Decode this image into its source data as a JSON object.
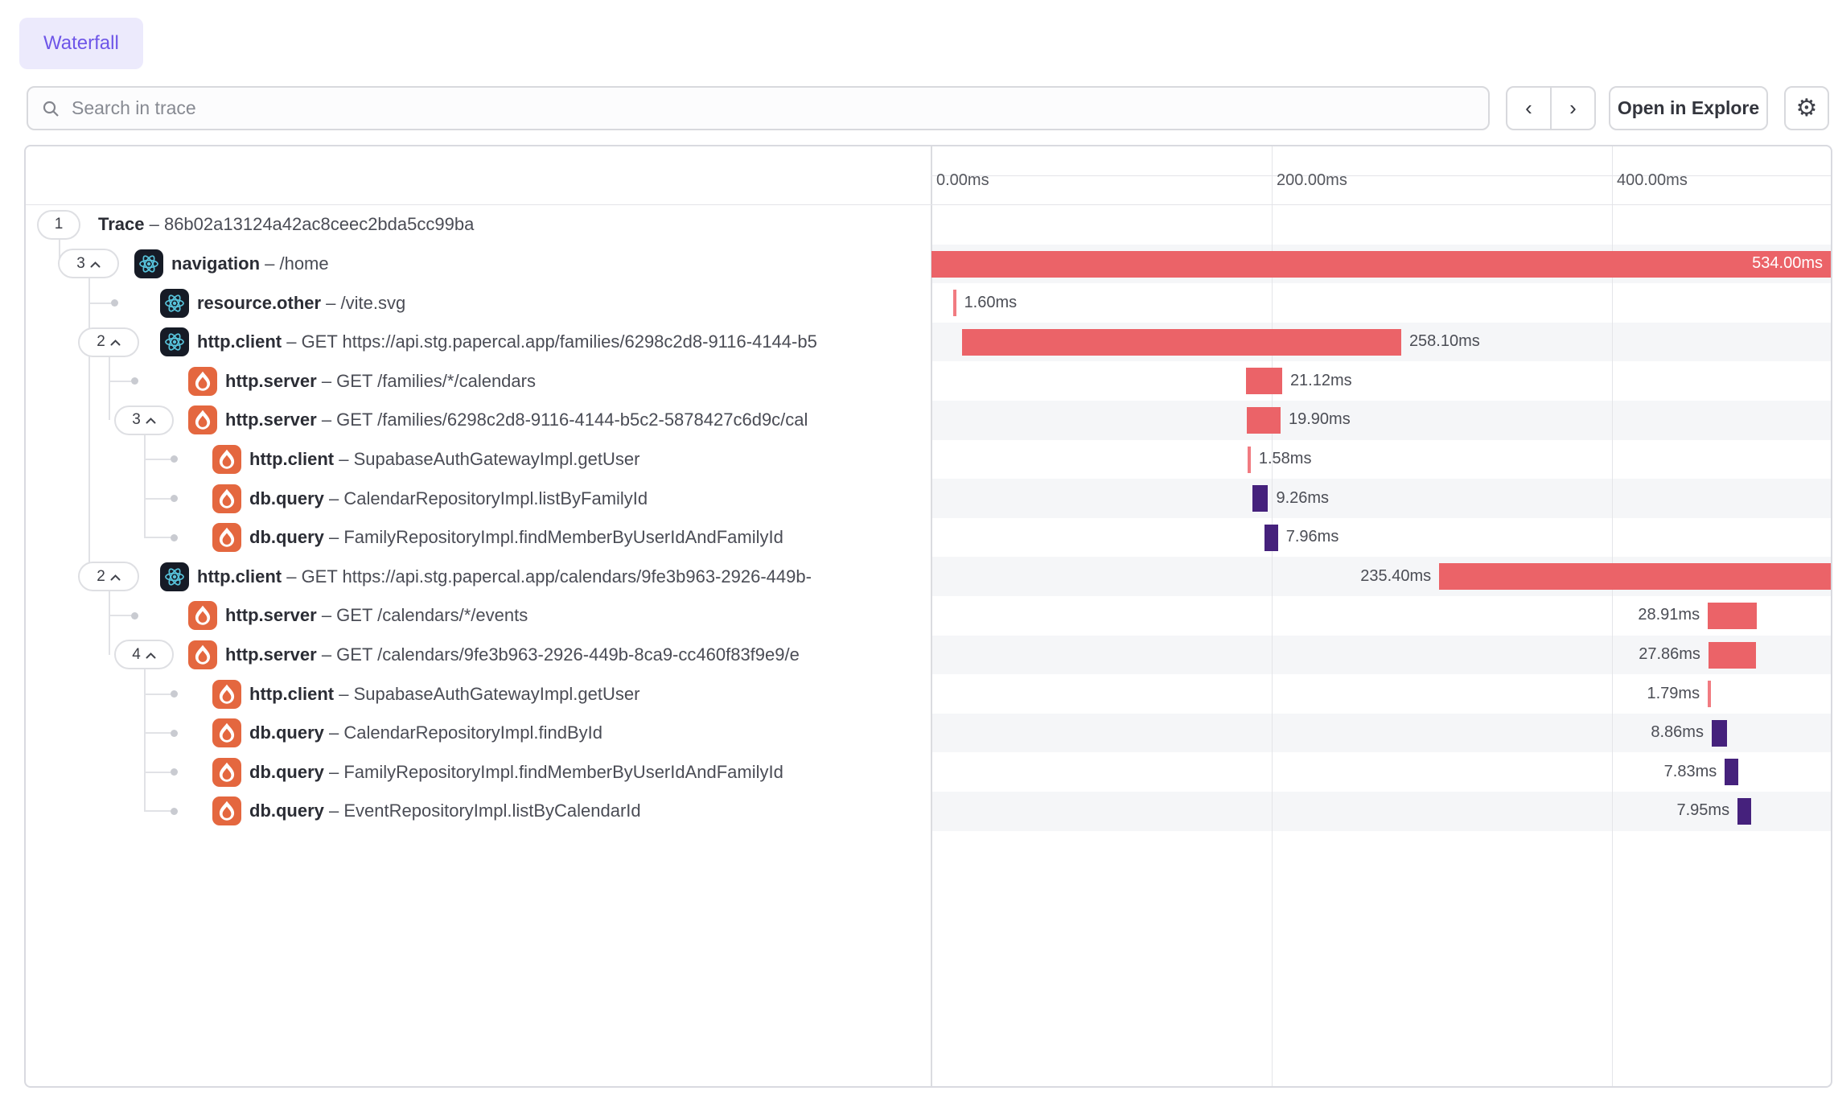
{
  "tab": {
    "label": "Waterfall"
  },
  "toolbar": {
    "search_placeholder": "Search in trace",
    "prev_label": "‹",
    "next_label": "›",
    "open_in_explore_label": "Open in Explore",
    "gear_glyph": "⚙"
  },
  "axis": {
    "unit": "ms",
    "ticks": [
      {
        "label": "0.00ms",
        "ms": 0
      },
      {
        "label": "200.00ms",
        "ms": 200
      },
      {
        "label": "400.00ms",
        "ms": 400
      }
    ]
  },
  "colors": {
    "accent_purple": "#6E56E8",
    "tab_bg": "#ECEAFC",
    "bar_red": "#EB6368",
    "bar_red_tick": "#F17B81",
    "bar_purple": "#45217C",
    "row_stripe": "#F5F6F8"
  },
  "separator": "–",
  "chart_data": {
    "type": "waterfall-trace",
    "trace_id": "86b02a13124a42ac8ceec2bda5cc99ba",
    "total_ms": 534,
    "axis_range_ms": [
      0,
      534
    ],
    "spans": [
      {
        "name": "Trace",
        "detail": "86b02a13124a42ac8ceec2bda5cc99ba",
        "level": 0,
        "badge": "1",
        "expandable": false,
        "icon": null,
        "bar": null
      },
      {
        "name": "navigation",
        "detail": "/home",
        "level": 1,
        "badge": "3",
        "expandable": true,
        "icon": "react",
        "bar": {
          "start_ms": 0,
          "duration_ms": 534.0,
          "duration_label": "534.00ms",
          "color": "red",
          "label_side": "inside"
        }
      },
      {
        "name": "resource.other",
        "detail": "/vite.svg",
        "level": 2,
        "leaf": true,
        "icon": "react",
        "bar": {
          "start_ms": 12.8,
          "duration_ms": 1.6,
          "duration_label": "1.60ms",
          "color": "red-tick",
          "label_side": "right"
        }
      },
      {
        "name": "http.client",
        "detail": "GET https://api.stg.papercal.app/families/6298c2d8-9116-4144-b5",
        "level": 2,
        "badge": "2",
        "expandable": true,
        "icon": "react",
        "bar": {
          "start_ms": 18.0,
          "duration_ms": 258.1,
          "duration_label": "258.10ms",
          "color": "red",
          "label_side": "right"
        }
      },
      {
        "name": "http.server",
        "detail": "GET /families/*/calendars",
        "level": 3,
        "leaf": true,
        "icon": "hono",
        "bar": {
          "start_ms": 185.0,
          "duration_ms": 21.12,
          "duration_label": "21.12ms",
          "color": "red",
          "label_side": "right"
        }
      },
      {
        "name": "http.server",
        "detail": "GET /families/6298c2d8-9116-4144-b5c2-5878427c6d9c/cal",
        "level": 3,
        "badge": "3",
        "expandable": true,
        "icon": "hono",
        "bar": {
          "start_ms": 185.3,
          "duration_ms": 19.9,
          "duration_label": "19.90ms",
          "color": "red",
          "label_side": "right"
        }
      },
      {
        "name": "http.client",
        "detail": "SupabaseAuthGatewayImpl.getUser",
        "level": 4,
        "leaf": true,
        "icon": "hono",
        "bar": {
          "start_ms": 186.0,
          "duration_ms": 1.58,
          "duration_label": "1.58ms",
          "color": "red-tick",
          "label_side": "right"
        }
      },
      {
        "name": "db.query",
        "detail": "CalendarRepositoryImpl.listByFamilyId",
        "level": 4,
        "leaf": true,
        "icon": "hono",
        "bar": {
          "start_ms": 188.6,
          "duration_ms": 9.26,
          "duration_label": "9.26ms",
          "color": "purple",
          "label_side": "right"
        }
      },
      {
        "name": "db.query",
        "detail": "FamilyRepositoryImpl.findMemberByUserIdAndFamilyId",
        "level": 4,
        "leaf": true,
        "icon": "hono",
        "bar": {
          "start_ms": 195.7,
          "duration_ms": 7.96,
          "duration_label": "7.96ms",
          "color": "purple",
          "label_side": "right"
        }
      },
      {
        "name": "http.client",
        "detail": "GET https://api.stg.papercal.app/calendars/9fe3b963-2926-449b-",
        "level": 2,
        "badge": "2",
        "expandable": true,
        "icon": "react",
        "bar": {
          "start_ms": 298.4,
          "duration_ms": 235.4,
          "duration_label": "235.40ms",
          "color": "red",
          "label_side": "left"
        }
      },
      {
        "name": "http.server",
        "detail": "GET /calendars/*/events",
        "level": 3,
        "leaf": true,
        "icon": "hono",
        "bar": {
          "start_ms": 456.3,
          "duration_ms": 28.91,
          "duration_label": "28.91ms",
          "color": "red",
          "label_side": "left"
        }
      },
      {
        "name": "http.server",
        "detail": "GET /calendars/9fe3b963-2926-449b-8ca9-cc460f83f9e9/e",
        "level": 3,
        "badge": "4",
        "expandable": true,
        "icon": "hono",
        "bar": {
          "start_ms": 456.7,
          "duration_ms": 27.86,
          "duration_label": "27.86ms",
          "color": "red",
          "label_side": "left"
        }
      },
      {
        "name": "http.client",
        "detail": "SupabaseAuthGatewayImpl.getUser",
        "level": 4,
        "leaf": true,
        "icon": "hono",
        "bar": {
          "start_ms": 456.3,
          "duration_ms": 1.79,
          "duration_label": "1.79ms",
          "color": "red-tick",
          "label_side": "left"
        }
      },
      {
        "name": "db.query",
        "detail": "CalendarRepositoryImpl.findById",
        "level": 4,
        "leaf": true,
        "icon": "hono",
        "bar": {
          "start_ms": 458.6,
          "duration_ms": 8.86,
          "duration_label": "8.86ms",
          "color": "purple",
          "label_side": "left"
        }
      },
      {
        "name": "db.query",
        "detail": "FamilyRepositoryImpl.findMemberByUserIdAndFamilyId",
        "level": 4,
        "leaf": true,
        "icon": "hono",
        "bar": {
          "start_ms": 466.3,
          "duration_ms": 7.83,
          "duration_label": "7.83ms",
          "color": "purple",
          "label_side": "left"
        }
      },
      {
        "name": "db.query",
        "detail": "EventRepositoryImpl.listByCalendarId",
        "level": 4,
        "leaf": true,
        "icon": "hono",
        "bar": {
          "start_ms": 473.8,
          "duration_ms": 7.95,
          "duration_label": "7.95ms",
          "color": "purple",
          "label_side": "left"
        }
      }
    ]
  }
}
